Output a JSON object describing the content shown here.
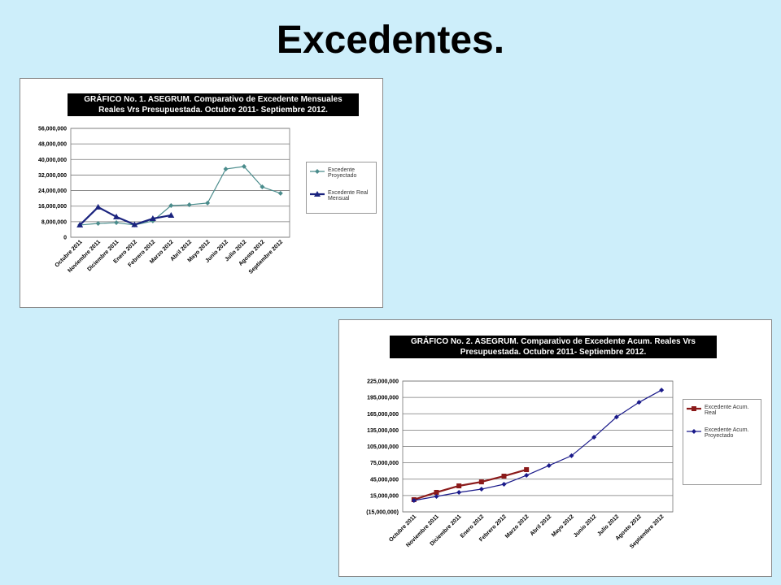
{
  "title": "Excedentes.",
  "chart_data": [
    {
      "type": "line",
      "title": "GRÁFICO No. 1. ASEGRUM. Comparativo de Excedente Mensuales Reales Vrs Presupuestada. Octubre 2011- Septiembre 2012.",
      "categories": [
        "Octubre 2011",
        "Noviembre 2011",
        "Diciembre 2011",
        "Enero 2012",
        "Febrero 2012",
        "Marzo 2012",
        "Abril 2012",
        "Mayo 2012",
        "Junio 2012",
        "Julio 2012",
        "Agosto 2012",
        "Septiembre 2012"
      ],
      "series": [
        {
          "name": "Excedente Proyectado",
          "color": "#4a8c8c",
          "marker": "diamond",
          "width": 1.2,
          "values": [
            6300000,
            7100000,
            7500000,
            6300000,
            8400000,
            16300000,
            16700000,
            17600000,
            35100000,
            36400000,
            25900000,
            22600000
          ]
        },
        {
          "name": "Excedente Real Mensual",
          "color": "#1a237e",
          "marker": "triangle",
          "width": 2.2,
          "values": [
            6300000,
            15500000,
            10500000,
            6500000,
            9600000,
            11300000,
            null,
            null,
            null,
            null,
            null,
            null
          ]
        }
      ],
      "ylim": [
        0,
        56000000
      ],
      "yticks": [
        0,
        {
          "value": 8000000,
          "label": "8,000,000"
        },
        {
          "value": 16000000,
          "label": "16,000,000"
        },
        {
          "value": 24000000,
          "label": "24,000,000"
        },
        {
          "value": 32000000,
          "label": "32,000,000"
        },
        {
          "value": 40000000,
          "label": "40,000,000"
        },
        {
          "value": 48000000,
          "label": "48,000,000"
        },
        {
          "value": 56000000,
          "label": "56,000,000"
        }
      ],
      "grid": true,
      "legend": "right"
    },
    {
      "type": "line",
      "title": "GRÁFICO No. 2. ASEGRUM. Comparativo de Excedente Acum. Reales Vrs Presupuestada. Octubre 2011- Septiembre 2012.",
      "categories": [
        "Octubre 2011",
        "Noviembre 2011",
        "Diciembre 2011",
        "Enero 2012",
        "Febrero 2012",
        "Marzo 2012",
        "Abril 2012",
        "Mayo 2012",
        "Junio 2012",
        "Julio 2012",
        "Agosto 2012",
        "Septiembre 2012"
      ],
      "series": [
        {
          "name": "Excedente Acum. Real",
          "color": "#8b1a1a",
          "marker": "square",
          "width": 2.2,
          "values": [
            7400000,
            20800000,
            32700000,
            40000000,
            50600000,
            62500000,
            null,
            null,
            null,
            null,
            null,
            null
          ]
        },
        {
          "name": "Excedente Acum. Proyectado",
          "color": "#1a1a8a",
          "marker": "diamond",
          "width": 1.2,
          "values": [
            5900000,
            13300000,
            20800000,
            26700000,
            35700000,
            52000000,
            70000000,
            88000000,
            122000000,
            159000000,
            186000000,
            208500000
          ]
        }
      ],
      "ylim": [
        -15000000,
        225000000
      ],
      "yticks": [
        {
          "value": -15000000,
          "label": "(15,000,000)"
        },
        {
          "value": 15000000,
          "label": "15,000,000"
        },
        {
          "value": 45000000,
          "label": "45,000,000"
        },
        {
          "value": 75000000,
          "label": "75,000,000"
        },
        {
          "value": 105000000,
          "label": "105,000,000"
        },
        {
          "value": 135000000,
          "label": "135,000,000"
        },
        {
          "value": 165000000,
          "label": "165,000,000"
        },
        {
          "value": 195000000,
          "label": "195,000,000"
        },
        {
          "value": 225000000,
          "label": "225,000,000"
        }
      ],
      "grid": true,
      "legend": "right"
    }
  ]
}
